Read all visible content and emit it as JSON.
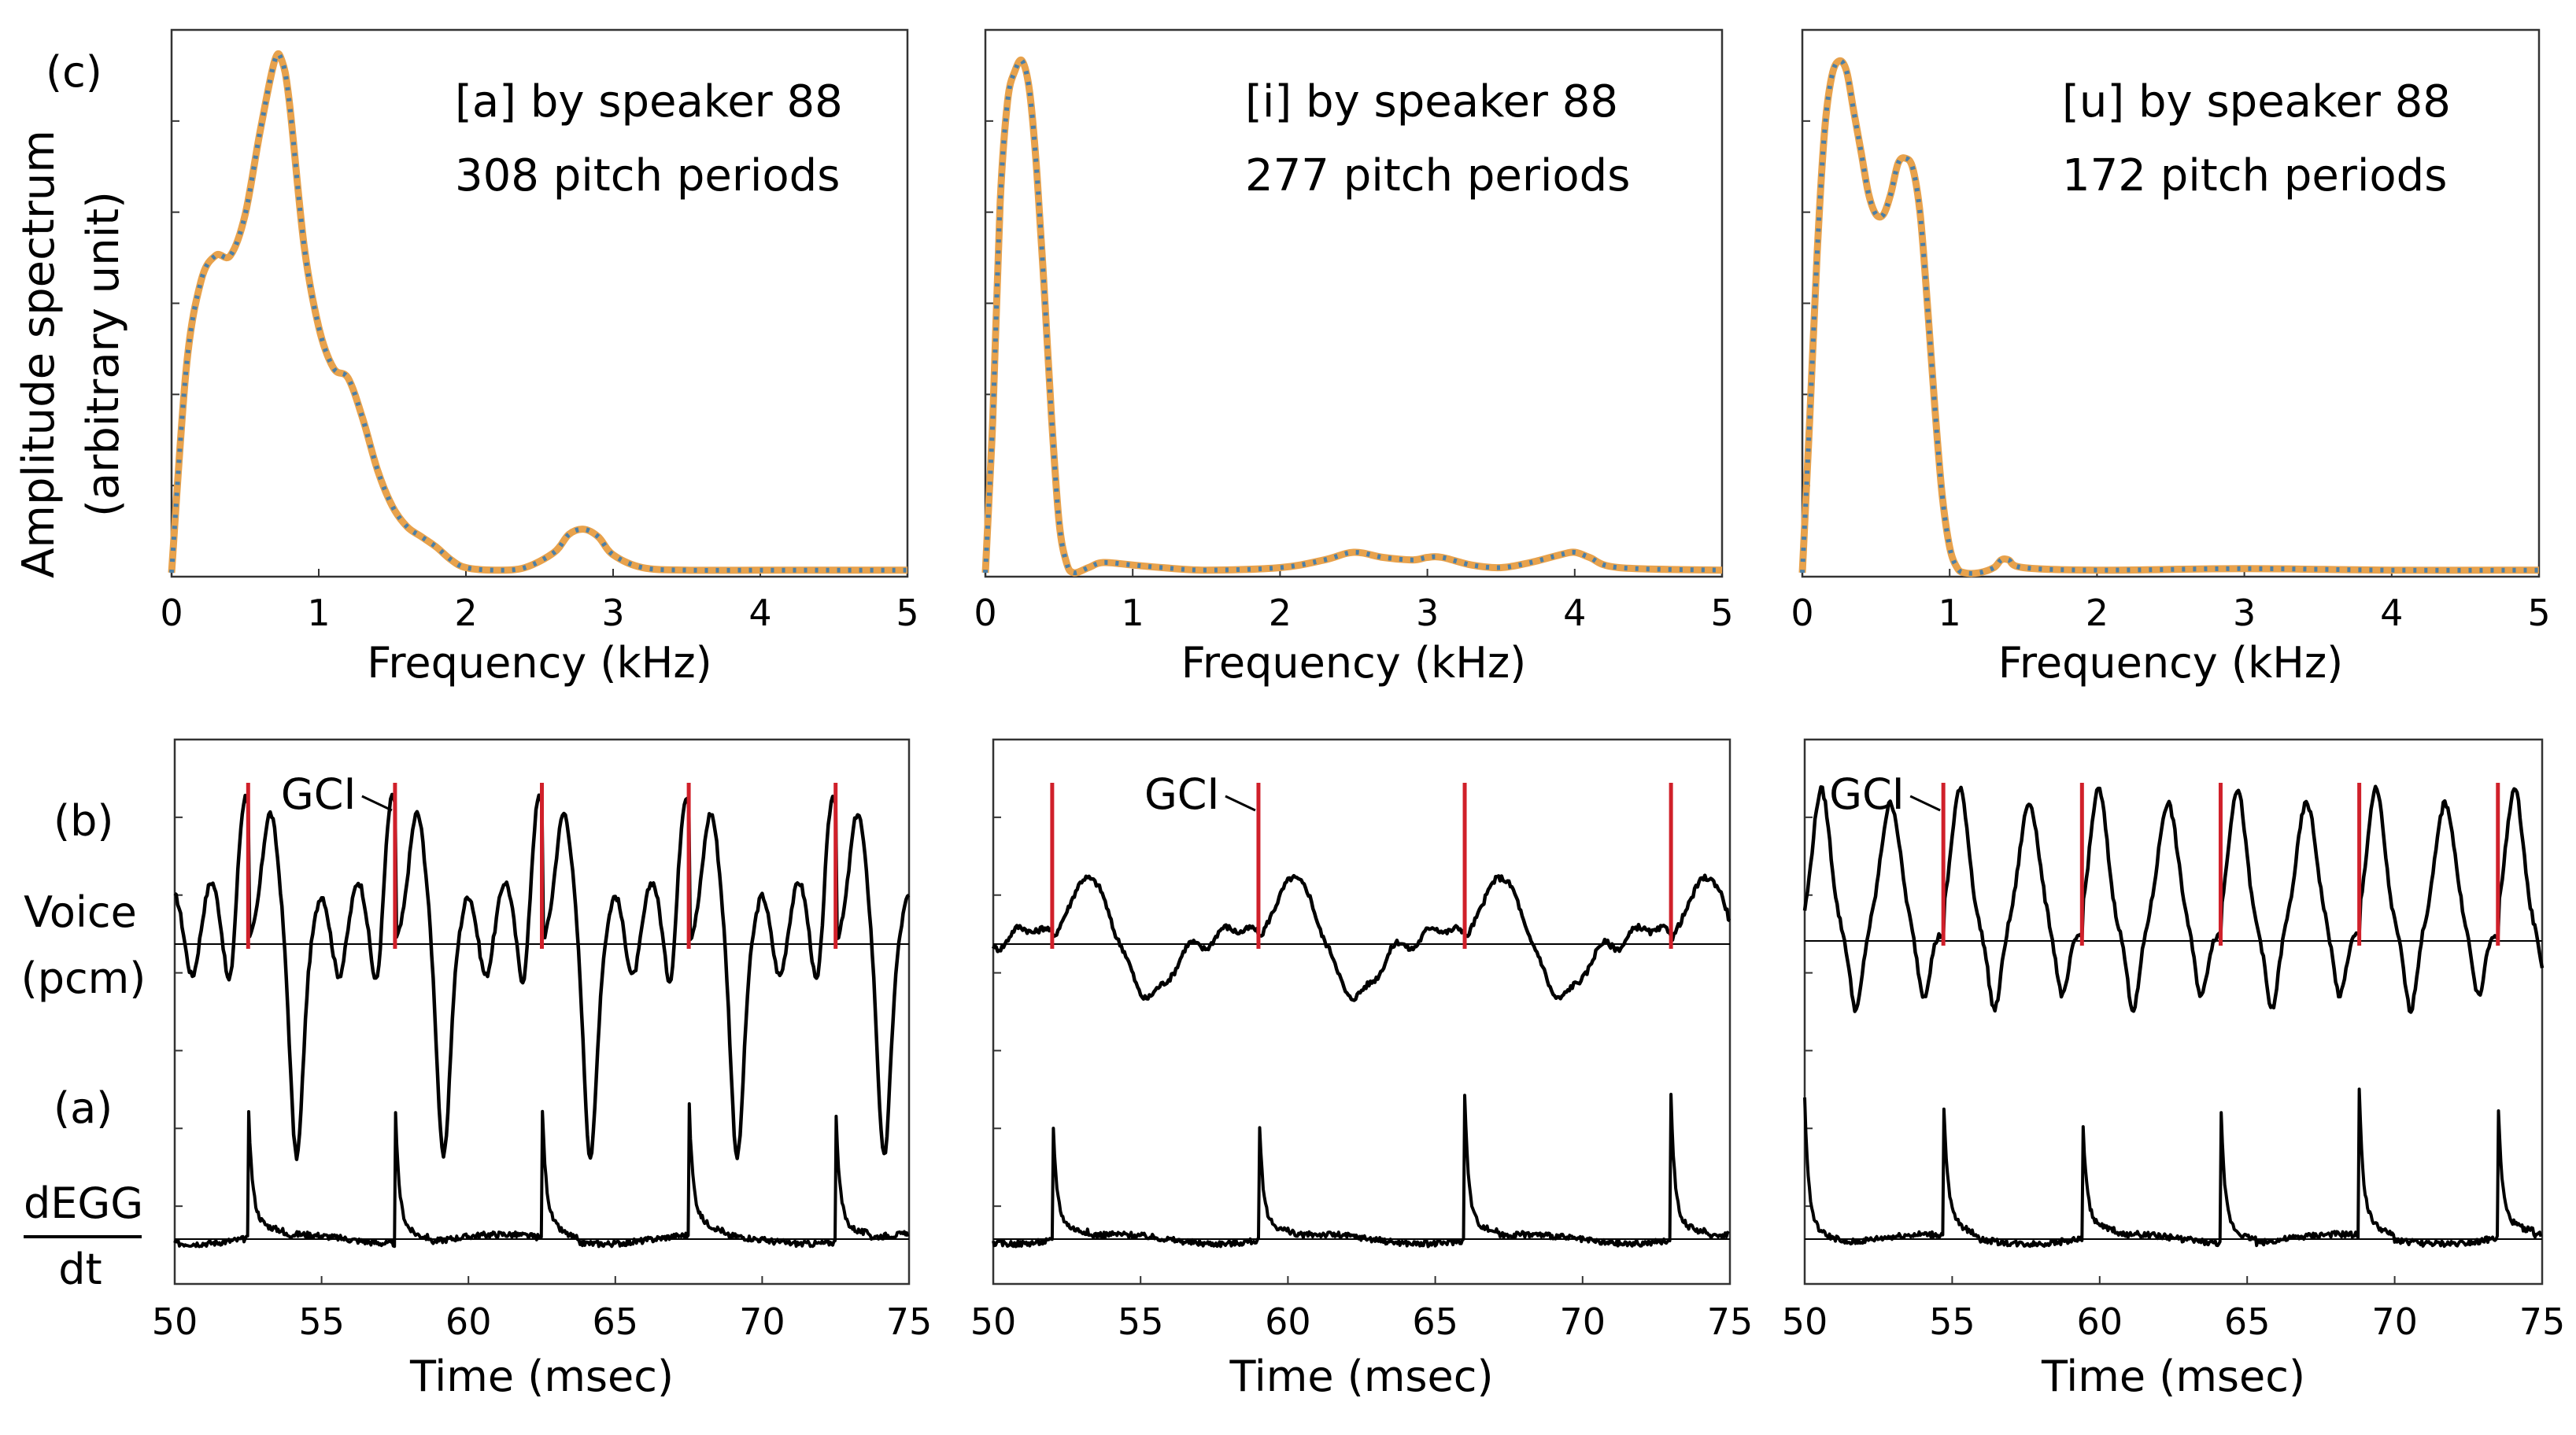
{
  "panel_labels": {
    "c": "(c)",
    "b": "(b)",
    "a": "(a)"
  },
  "ylabels": {
    "spectrum": [
      "Amplitude spectrum",
      "(arbitrary unit)"
    ],
    "voice": [
      "Voice",
      "(pcm)"
    ],
    "degg_num": "dEGG",
    "degg_den": "dt"
  },
  "colors": {
    "fit": "#E8A24C",
    "data": "#4A7FA8",
    "gci": "#D0202A",
    "trace": "#000000"
  },
  "chart_data": [
    {
      "type": "line",
      "id": "spec-a",
      "annotation": [
        "[a] by speaker 88",
        "308 pitch periods"
      ],
      "xlabel": "Frequency (kHz)",
      "xlim": [
        0,
        5
      ],
      "xticks": [
        "0",
        "1",
        "2",
        "3",
        "4",
        "5"
      ],
      "ylabel": "Amplitude spectrum (arbitrary unit)",
      "ylim": [
        0,
        1.05
      ],
      "series": [
        {
          "x": [
            0,
            0.1,
            0.2,
            0.3,
            0.4,
            0.5,
            0.6,
            0.7,
            0.75,
            0.8,
            0.9,
            1.0,
            1.1,
            1.2,
            1.3,
            1.4,
            1.5,
            1.6,
            1.7,
            1.8,
            1.9,
            2.0,
            2.2,
            2.4,
            2.6,
            2.7,
            2.8,
            2.9,
            3.0,
            3.2,
            3.5,
            4.0,
            5.0
          ],
          "y": [
            0,
            0.4,
            0.57,
            0.62,
            0.62,
            0.7,
            0.86,
            1.0,
            1.0,
            0.92,
            0.64,
            0.48,
            0.4,
            0.38,
            0.3,
            0.2,
            0.13,
            0.09,
            0.07,
            0.05,
            0.025,
            0.01,
            0.005,
            0.01,
            0.04,
            0.075,
            0.085,
            0.07,
            0.035,
            0.01,
            0.005,
            0.005,
            0.005
          ]
        }
      ]
    },
    {
      "type": "line",
      "id": "spec-i",
      "annotation": [
        "[i]  by speaker 88",
        "277 pitch periods"
      ],
      "xlabel": "Frequency (kHz)",
      "xlim": [
        0,
        5
      ],
      "xticks": [
        "0",
        "1",
        "2",
        "3",
        "4",
        "5"
      ],
      "ylim": [
        0,
        1.05
      ],
      "series": [
        {
          "x": [
            0,
            0.05,
            0.1,
            0.15,
            0.2,
            0.25,
            0.3,
            0.35,
            0.4,
            0.45,
            0.5,
            0.55,
            0.6,
            0.7,
            0.8,
            1.0,
            1.2,
            1.5,
            2.0,
            2.3,
            2.5,
            2.7,
            2.9,
            3.0,
            3.1,
            3.3,
            3.5,
            3.7,
            3.9,
            4.0,
            4.1,
            4.3,
            5.0
          ],
          "y": [
            0,
            0.3,
            0.72,
            0.92,
            0.98,
            1.0,
            0.94,
            0.78,
            0.55,
            0.3,
            0.1,
            0.02,
            0.0,
            0.01,
            0.02,
            0.015,
            0.01,
            0.005,
            0.01,
            0.025,
            0.04,
            0.03,
            0.025,
            0.03,
            0.03,
            0.015,
            0.01,
            0.02,
            0.035,
            0.04,
            0.03,
            0.01,
            0.005
          ]
        }
      ]
    },
    {
      "type": "line",
      "id": "spec-u",
      "annotation": [
        "[u]  by speaker 88",
        "172 pitch periods"
      ],
      "xlabel": "Frequency (kHz)",
      "xlim": [
        0,
        5
      ],
      "xticks": [
        "0",
        "1",
        "2",
        "3",
        "4",
        "5"
      ],
      "ylim": [
        0,
        1.05
      ],
      "series": [
        {
          "x": [
            0,
            0.05,
            0.1,
            0.15,
            0.2,
            0.25,
            0.3,
            0.35,
            0.4,
            0.45,
            0.5,
            0.55,
            0.6,
            0.65,
            0.7,
            0.75,
            0.8,
            0.85,
            0.9,
            0.95,
            1.0,
            1.05,
            1.1,
            1.2,
            1.3,
            1.35,
            1.4,
            1.5,
            2.0,
            3.0,
            4.0,
            5.0
          ],
          "y": [
            0,
            0.3,
            0.62,
            0.86,
            0.97,
            1.0,
            0.98,
            0.9,
            0.82,
            0.74,
            0.7,
            0.7,
            0.74,
            0.8,
            0.81,
            0.79,
            0.7,
            0.52,
            0.32,
            0.15,
            0.05,
            0.01,
            0.0,
            0.0,
            0.01,
            0.025,
            0.025,
            0.01,
            0.005,
            0.008,
            0.005,
            0.005
          ]
        }
      ]
    },
    {
      "type": "line",
      "id": "wave-a",
      "xlabel": "Time (msec)",
      "xlim": [
        50,
        75
      ],
      "xticks": [
        "50",
        "55",
        "60",
        "65",
        "70",
        "75"
      ],
      "gci_label": "GCI",
      "gci_times": [
        52.5,
        57.5,
        62.5,
        67.5,
        72.5
      ],
      "period": 5.0,
      "voice_shape": "a",
      "degg_spikes": [
        52.5,
        57.5,
        62.5,
        67.5,
        72.5
      ]
    },
    {
      "type": "line",
      "id": "wave-i",
      "xlabel": "Time (msec)",
      "xlim": [
        50,
        75
      ],
      "xticks": [
        "50",
        "55",
        "60",
        "65",
        "70",
        "75"
      ],
      "gci_label": "GCI",
      "gci_times": [
        52.0,
        59.0,
        66.0,
        73.0
      ],
      "period": 7.0,
      "voice_shape": "i",
      "degg_spikes": [
        52.0,
        59.0,
        66.0,
        73.0
      ]
    },
    {
      "type": "line",
      "id": "wave-u",
      "xlabel": "Time (msec)",
      "xlim": [
        50,
        75
      ],
      "xticks": [
        "50",
        "55",
        "60",
        "65",
        "70",
        "75"
      ],
      "gci_label": "GCI",
      "gci_times": [
        54.7,
        59.4,
        64.1,
        68.8,
        73.5
      ],
      "period": 4.7,
      "voice_shape": "u",
      "degg_spikes": [
        54.7,
        59.4,
        64.1,
        68.8,
        73.5
      ]
    }
  ]
}
